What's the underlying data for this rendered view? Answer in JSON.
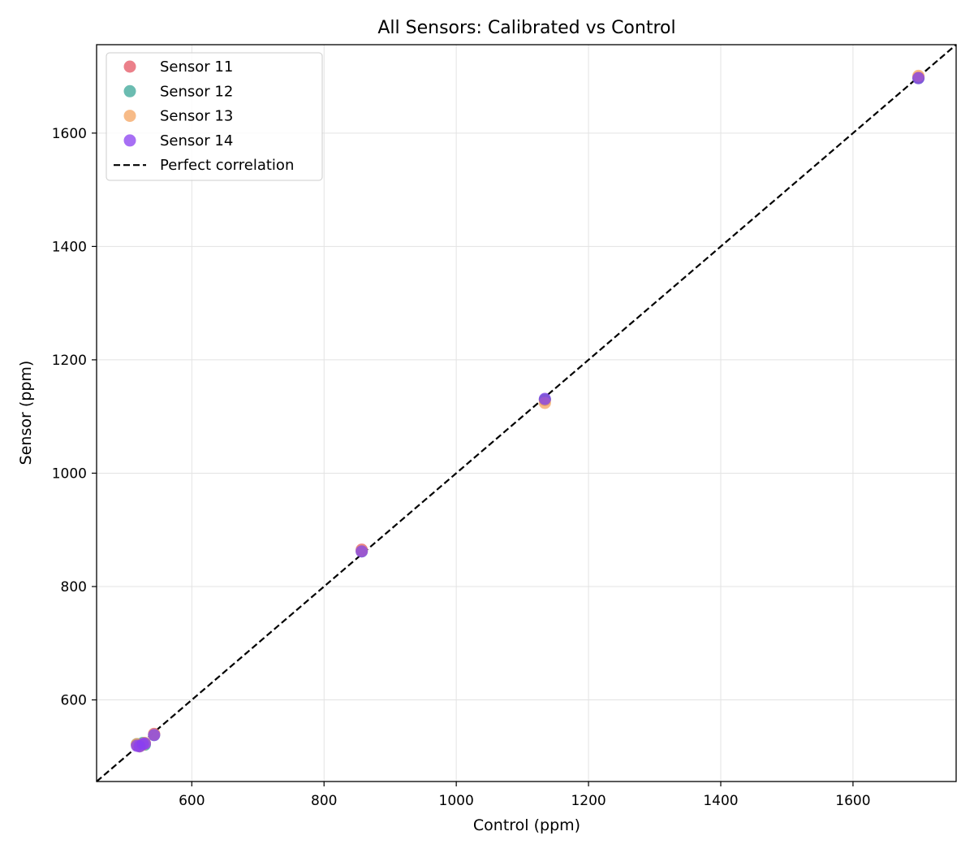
{
  "chart_data": {
    "type": "scatter",
    "title": "All Sensors: Calibrated vs Control",
    "xlabel": "Control (ppm)",
    "ylabel": "Sensor (ppm)",
    "xlim": [
      456,
      1756
    ],
    "ylim": [
      456,
      1756
    ],
    "xticks": [
      600,
      800,
      1000,
      1200,
      1400,
      1600
    ],
    "yticks": [
      600,
      800,
      1000,
      1200,
      1400,
      1600
    ],
    "grid": true,
    "legend_position": "top-left",
    "series": [
      {
        "name": "Sensor 11",
        "color": "#e45563",
        "points": [
          {
            "x": 517,
            "y": 521
          },
          {
            "x": 521,
            "y": 520
          },
          {
            "x": 526,
            "y": 522
          },
          {
            "x": 529,
            "y": 523
          },
          {
            "x": 543,
            "y": 540
          },
          {
            "x": 857,
            "y": 865
          },
          {
            "x": 1134,
            "y": 1129
          },
          {
            "x": 1699,
            "y": 1698
          }
        ]
      },
      {
        "name": "Sensor 12",
        "color": "#3aa597",
        "points": [
          {
            "x": 517,
            "y": 522
          },
          {
            "x": 521,
            "y": 519
          },
          {
            "x": 526,
            "y": 524
          },
          {
            "x": 529,
            "y": 521
          },
          {
            "x": 543,
            "y": 538
          },
          {
            "x": 857,
            "y": 862
          },
          {
            "x": 1134,
            "y": 1130
          },
          {
            "x": 1699,
            "y": 1697
          }
        ]
      },
      {
        "name": "Sensor 13",
        "color": "#f4a460",
        "points": [
          {
            "x": 517,
            "y": 522
          },
          {
            "x": 521,
            "y": 518
          },
          {
            "x": 526,
            "y": 521
          },
          {
            "x": 529,
            "y": 524
          },
          {
            "x": 543,
            "y": 539
          },
          {
            "x": 857,
            "y": 863
          },
          {
            "x": 1134,
            "y": 1124
          },
          {
            "x": 1699,
            "y": 1701
          }
        ]
      },
      {
        "name": "Sensor 14",
        "color": "#8a3ff0",
        "points": [
          {
            "x": 517,
            "y": 519
          },
          {
            "x": 521,
            "y": 518
          },
          {
            "x": 526,
            "y": 522
          },
          {
            "x": 529,
            "y": 523
          },
          {
            "x": 543,
            "y": 538
          },
          {
            "x": 857,
            "y": 862
          },
          {
            "x": 1134,
            "y": 1131
          },
          {
            "x": 1699,
            "y": 1697
          }
        ]
      }
    ],
    "reference_line": {
      "name": "Perfect correlation",
      "style": "dashed",
      "color": "#000000"
    }
  }
}
